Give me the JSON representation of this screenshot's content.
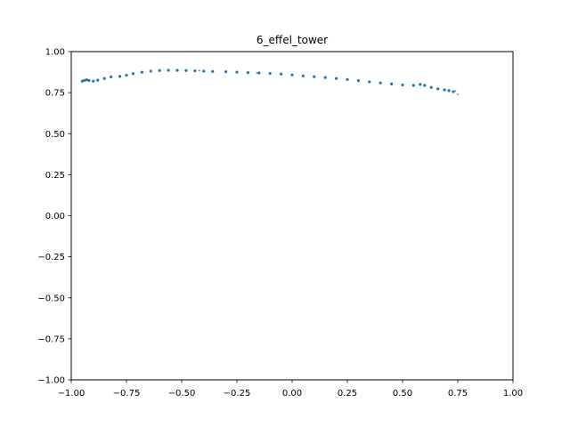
{
  "chart_data": {
    "type": "scatter",
    "title": "6_effel_tower",
    "xlabel": "",
    "ylabel": "",
    "xlim": [
      -1.0,
      1.0
    ],
    "ylim": [
      -1.0,
      1.0
    ],
    "xticks": [
      -1.0,
      -0.75,
      -0.5,
      -0.25,
      0.0,
      0.25,
      0.5,
      0.75,
      1.0
    ],
    "yticks": [
      -1.0,
      -0.75,
      -0.5,
      -0.25,
      0.0,
      0.25,
      0.5,
      0.75,
      1.0
    ],
    "xtick_labels": [
      "−1.00",
      "−0.75",
      "−0.50",
      "−0.25",
      "0.00",
      "0.25",
      "0.50",
      "0.75",
      "1.00"
    ],
    "ytick_labels": [
      "−1.00",
      "−0.75",
      "−0.50",
      "−0.25",
      "0.00",
      "0.25",
      "0.50",
      "0.75",
      "1.00"
    ],
    "grid": false,
    "series": [
      {
        "color": "#1f77b4",
        "points": [
          [
            -0.95,
            0.82
          ],
          [
            -0.94,
            0.825
          ],
          [
            -0.93,
            0.828
          ],
          [
            -0.92,
            0.824
          ],
          [
            -0.9,
            0.82
          ],
          [
            -0.88,
            0.826
          ],
          [
            -0.85,
            0.836
          ],
          [
            -0.82,
            0.846
          ],
          [
            -0.78,
            0.849
          ],
          [
            -0.75,
            0.856
          ],
          [
            -0.72,
            0.866
          ],
          [
            -0.68,
            0.874
          ],
          [
            -0.64,
            0.881
          ],
          [
            -0.6,
            0.885
          ],
          [
            -0.56,
            0.886
          ],
          [
            -0.52,
            0.886
          ],
          [
            -0.48,
            0.885
          ],
          [
            -0.44,
            0.883
          ],
          [
            -0.4,
            0.881
          ],
          [
            -0.36,
            0.879
          ],
          [
            -0.3,
            0.877
          ],
          [
            -0.25,
            0.875
          ],
          [
            -0.2,
            0.872
          ],
          [
            -0.15,
            0.87
          ],
          [
            -0.1,
            0.867
          ],
          [
            -0.05,
            0.863
          ],
          [
            0.0,
            0.858
          ],
          [
            0.05,
            0.852
          ],
          [
            0.1,
            0.847
          ],
          [
            0.15,
            0.842
          ],
          [
            0.2,
            0.836
          ],
          [
            0.25,
            0.83
          ],
          [
            0.3,
            0.823
          ],
          [
            0.35,
            0.816
          ],
          [
            0.4,
            0.809
          ],
          [
            0.45,
            0.803
          ],
          [
            0.5,
            0.797
          ],
          [
            0.55,
            0.794
          ],
          [
            0.58,
            0.8
          ],
          [
            0.6,
            0.794
          ],
          [
            0.63,
            0.782
          ],
          [
            0.66,
            0.773
          ],
          [
            0.69,
            0.767
          ],
          [
            0.71,
            0.762
          ],
          [
            0.73,
            0.756
          ]
        ]
      },
      {
        "color": "#d62728",
        "points": [
          [
            -0.42,
            0.884
          ],
          [
            -0.16,
            0.87
          ],
          [
            0.58,
            0.8
          ],
          [
            0.74,
            0.76
          ],
          [
            0.75,
            0.74
          ]
        ]
      }
    ]
  }
}
